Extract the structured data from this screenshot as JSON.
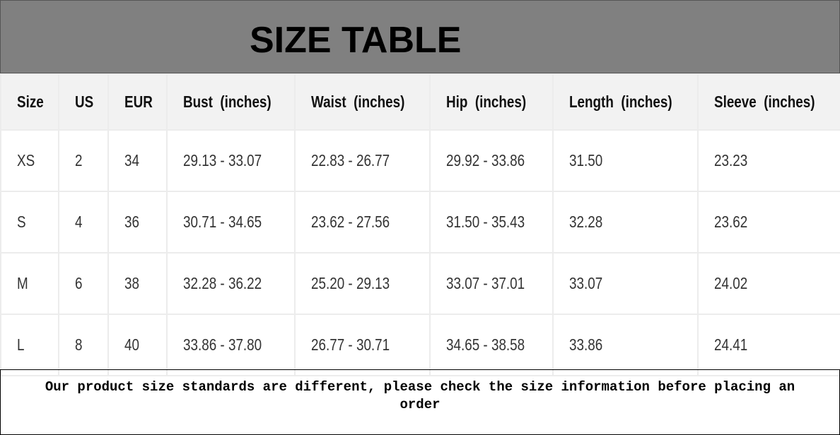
{
  "title": "SIZE TABLE",
  "table": {
    "headers": [
      "Size",
      "US",
      "EUR",
      "Bust  (inches)",
      "Waist  (inches)",
      "Hip  (inches)",
      "Length  (inches)",
      "Sleeve  (inches)"
    ],
    "rows": [
      [
        "XS",
        "2",
        "34",
        "29.13 - 33.07",
        "22.83 - 26.77",
        "29.92 - 33.86",
        "31.50",
        "23.23"
      ],
      [
        "S",
        "4",
        "36",
        "30.71 - 34.65",
        "23.62 - 27.56",
        "31.50 - 35.43",
        "32.28",
        "23.62"
      ],
      [
        "M",
        "6",
        "38",
        "32.28 - 36.22",
        "25.20 - 29.13",
        "33.07 - 37.01",
        "33.07",
        "24.02"
      ],
      [
        "L",
        "8",
        "40",
        "33.86 - 37.80",
        "26.77 - 30.71",
        "34.65 - 38.58",
        "33.86",
        "24.41"
      ]
    ]
  },
  "note": "Our product size standards are different, please check the size information before placing an order"
}
